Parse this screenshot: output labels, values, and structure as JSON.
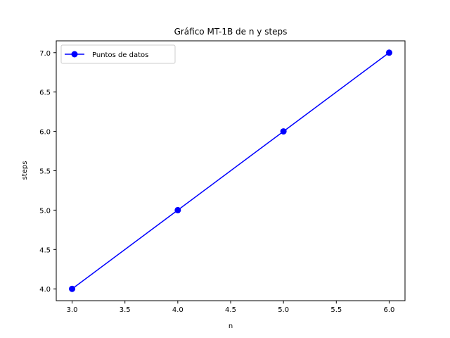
{
  "chart_data": {
    "type": "line",
    "title": "Gráfico MT-1B de n y steps",
    "xlabel": "n",
    "ylabel": "steps",
    "xlim": [
      2.85,
      6.15
    ],
    "ylim": [
      3.85,
      7.15
    ],
    "xticks": [
      "3.0",
      "3.5",
      "4.0",
      "4.5",
      "5.0",
      "5.5",
      "6.0"
    ],
    "yticks": [
      "4.0",
      "4.5",
      "5.0",
      "5.5",
      "6.0",
      "6.5",
      "7.0"
    ],
    "grid": false,
    "legend_position": "top-left",
    "series": [
      {
        "name": "Puntos de datos",
        "color": "#0000ff",
        "marker": "circle",
        "x": [
          3,
          4,
          5,
          6
        ],
        "y": [
          4,
          5,
          6,
          7
        ]
      }
    ]
  }
}
